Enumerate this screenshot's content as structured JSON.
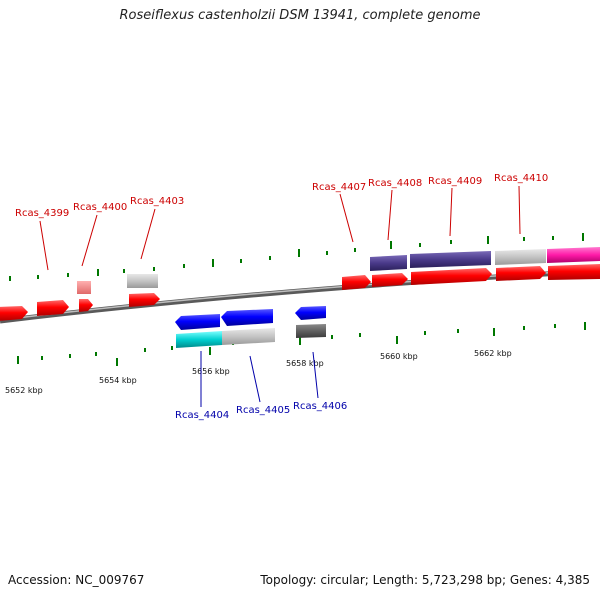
{
  "title": "Roseiflexus castenholzii DSM 13941, complete genome",
  "footer": {
    "accession": "Accession: NC_009767",
    "summary": "Topology: circular; Length: 5,723,298 bp; Genes: 4,385"
  },
  "ticks": [
    {
      "label": "5652 kbp"
    },
    {
      "label": "5654 kbp"
    },
    {
      "label": "5656 kbp"
    },
    {
      "label": "5658 kbp"
    },
    {
      "label": "5660 kbp"
    },
    {
      "label": "5662 kbp"
    }
  ],
  "gene_labels": {
    "top": [
      "Rcas_4399",
      "Rcas_4400",
      "Rcas_4403",
      "Rcas_4407",
      "Rcas_4408",
      "Rcas_4409",
      "Rcas_4410"
    ],
    "bottom": [
      "Rcas_4404",
      "Rcas_4405",
      "Rcas_4406"
    ]
  },
  "colors": {
    "forward_label": "#cc0000",
    "reverse_label": "#0000aa",
    "forward_gene": "#ff0000",
    "reverse_gene": "#0000ff",
    "backbone": "#888888",
    "tick": "#006600"
  }
}
